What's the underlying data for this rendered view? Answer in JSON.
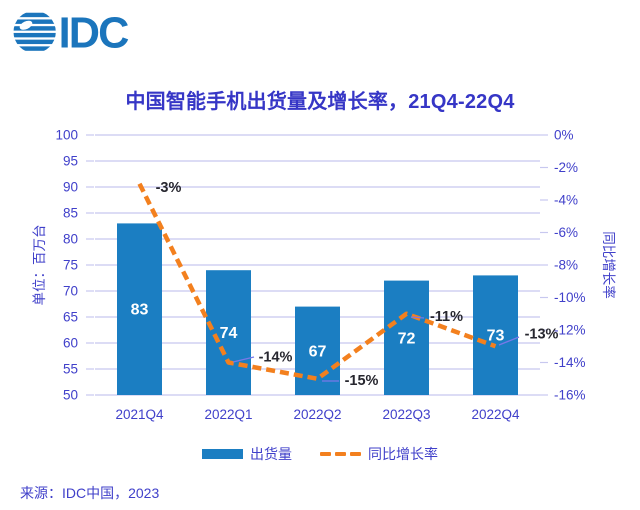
{
  "logo": {
    "text": "IDC",
    "color": "#1B75BC"
  },
  "title": "中国智能手机出货量及增长率，21Q4-22Q4",
  "source": "来源：IDC中国，2023",
  "chart_data": {
    "type": "bar",
    "subtype": "combo-bar-line",
    "title": "中国智能手机出货量及增长率，21Q4-22Q4",
    "categories": [
      "2021Q4",
      "2022Q1",
      "2022Q2",
      "2022Q3",
      "2022Q4"
    ],
    "series": [
      {
        "name": "出货量",
        "type": "bar",
        "axis": "left",
        "unit": "百万台",
        "values": [
          83,
          74,
          67,
          72,
          73
        ]
      },
      {
        "name": "同比增长率",
        "type": "line",
        "axis": "right",
        "unit": "%",
        "dashed": true,
        "values": [
          -3,
          -14,
          -15,
          -11,
          -13
        ],
        "point_labels": [
          "-3%",
          "-14%",
          "-15%",
          "-11%",
          "-13%"
        ]
      }
    ],
    "left_axis": {
      "label": "单位：百万台",
      "min": 50,
      "max": 100,
      "step": 5,
      "ticks": [
        "100",
        "95",
        "90",
        "85",
        "80",
        "75",
        "70",
        "65",
        "60",
        "55",
        "50"
      ]
    },
    "right_axis": {
      "label": "同比增长率",
      "min": -16,
      "max": 0,
      "step": 2,
      "ticks": [
        "0%",
        "-2%",
        "-4%",
        "-6%",
        "-8%",
        "-10%",
        "-12%",
        "-14%",
        "-16%"
      ]
    },
    "legend": {
      "bar": "出货量",
      "line": "同比增长率",
      "position": "bottom"
    },
    "grid": "horizontal",
    "colors": {
      "bar": "#1B7EC2",
      "line": "#F3801E",
      "axis_text": "#4040CA",
      "title_text": "#3636C6",
      "grid": "#C8C8EF",
      "point_label": "#27272F",
      "bar_label": "#FFFFFF",
      "leader": "#7878E8",
      "logo": "#1B75BC"
    }
  }
}
